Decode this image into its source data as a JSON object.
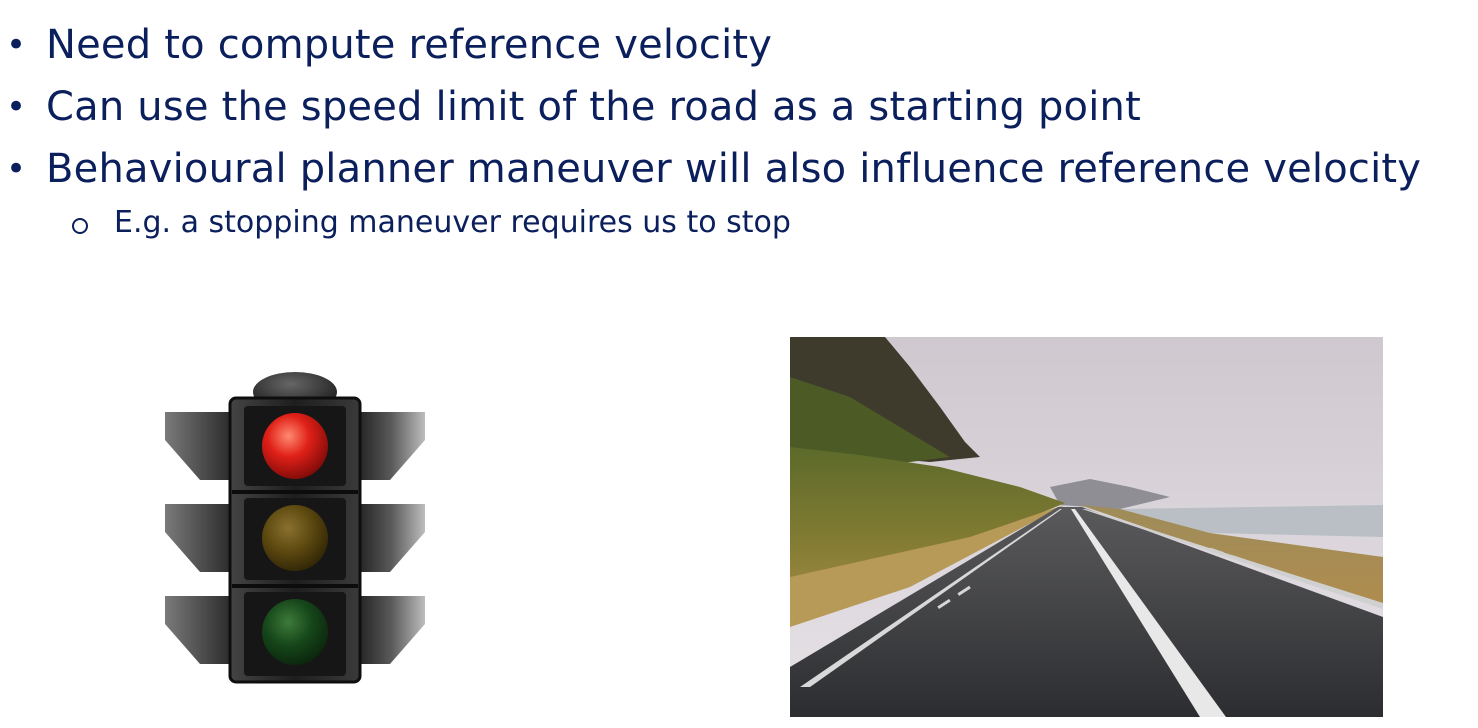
{
  "slide": {
    "bullets": [
      {
        "text": "Need to compute reference velocity"
      },
      {
        "text": "Can use the speed limit of the road as a starting point"
      },
      {
        "text": "Behavioural planner maneuver will also influence reference velocity"
      }
    ],
    "sub_bullets": [
      {
        "text": "E.g. a stopping maneuver requires us to stop"
      }
    ],
    "bullet_glyph": "•",
    "images": [
      {
        "icon": "traffic-light-icon"
      },
      {
        "icon": "road-photo"
      }
    ],
    "colors": {
      "text": "#0a1f5c",
      "red_lamp": "#e02018",
      "amber_lamp": "#5e4a10",
      "green_lamp": "#16471a"
    }
  }
}
